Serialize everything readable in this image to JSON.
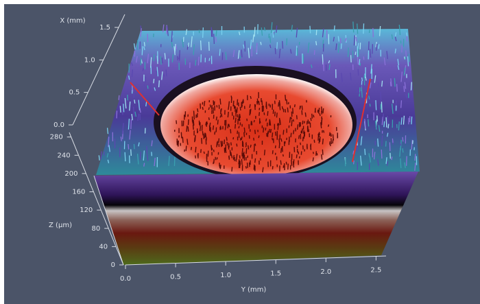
{
  "chart_data": {
    "type": "surface3d",
    "xlabel": "X (mm)",
    "ylabel": "Y (mm)",
    "zlabel": "Z (µm)",
    "xlim": [
      0,
      1.7
    ],
    "xticks": [
      {
        "value": 0,
        "label": "0.0"
      },
      {
        "value": 0.5,
        "label": "0.5"
      },
      {
        "value": 1,
        "label": "1.0"
      },
      {
        "value": 1.5,
        "label": "1.5"
      }
    ],
    "ylim": [
      0,
      2.6
    ],
    "yticks": [
      {
        "value": 0,
        "label": "0.0"
      },
      {
        "value": 0.5,
        "label": "0.5"
      },
      {
        "value": 1,
        "label": "1.0"
      },
      {
        "value": 1.5,
        "label": "1.5"
      },
      {
        "value": 2,
        "label": "2.0"
      },
      {
        "value": 2.5,
        "label": "2.5"
      }
    ],
    "zlim": [
      0,
      290
    ],
    "zticks": [
      0,
      40,
      80,
      120,
      160,
      200,
      240,
      280
    ]
  }
}
